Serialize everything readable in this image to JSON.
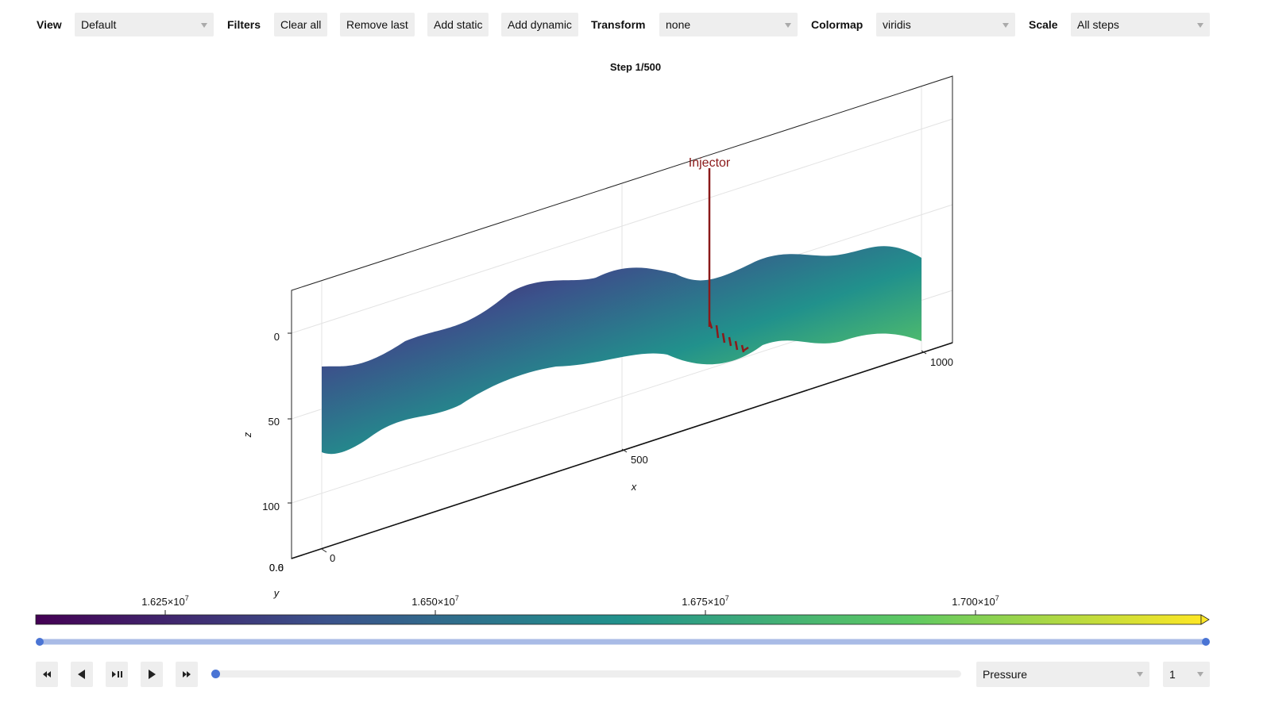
{
  "toolbar": {
    "view": {
      "label": "View",
      "value": "Default"
    },
    "filters": {
      "label": "Filters",
      "buttons": [
        "Clear all",
        "Remove last",
        "Add static",
        "Add dynamic"
      ]
    },
    "transform": {
      "label": "Transform",
      "value": "none"
    },
    "colormap": {
      "label": "Colormap",
      "value": "viridis"
    },
    "scale": {
      "label": "Scale",
      "value": "All steps"
    }
  },
  "plot": {
    "title": "Step 1/500",
    "well_label": "Injector",
    "axes": {
      "x": {
        "label": "x",
        "ticks": [
          "0",
          "500",
          "1000"
        ]
      },
      "y": {
        "label": "y",
        "ticks": [
          "0.0",
          "0.6"
        ]
      },
      "z": {
        "label": "z",
        "ticks": [
          "0",
          "50",
          "100"
        ]
      }
    }
  },
  "colorbar": {
    "ticks": [
      {
        "mantissa": "1.625×10",
        "exponent": "7"
      },
      {
        "mantissa": "1.650×10",
        "exponent": "7"
      },
      {
        "mantissa": "1.675×10",
        "exponent": "7"
      },
      {
        "mantissa": "1.700×10",
        "exponent": "7"
      }
    ]
  },
  "playback": {
    "variable": "Pressure",
    "index": "1"
  }
}
